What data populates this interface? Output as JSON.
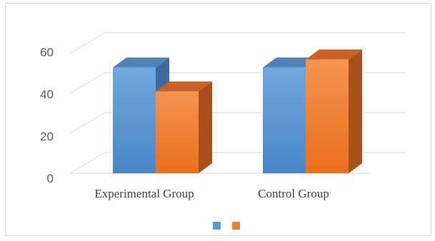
{
  "chart_data": {
    "type": "bar",
    "title": "",
    "xlabel": "",
    "ylabel": "",
    "categories": [
      "Experimental Group",
      "Control Group"
    ],
    "series": [
      {
        "values": [
          53,
          53
        ],
        "color": "#5b9bd5"
      },
      {
        "values": [
          41,
          57
        ],
        "color": "#ed7d31"
      }
    ],
    "yticks": [
      "0",
      "20",
      "40",
      "60"
    ],
    "ylim": [
      0,
      60
    ],
    "grid": true,
    "legend": "bottom-center",
    "style": "3d-column"
  }
}
